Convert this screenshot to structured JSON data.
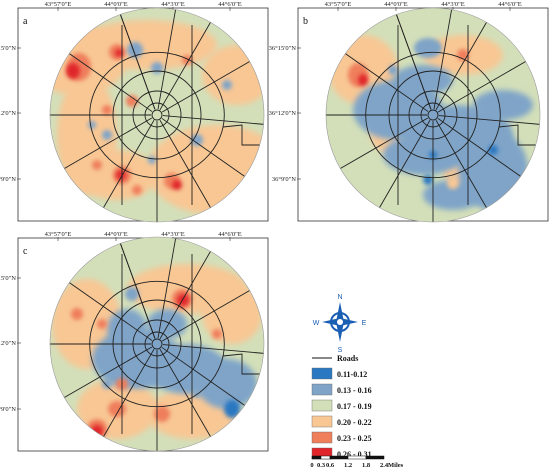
{
  "panels": [
    {
      "id": "a",
      "label": "a",
      "x_ticks": [
        "43°57'0\"E",
        "44°0'0\"E",
        "44°3'0\"E",
        "44°6'0\"E"
      ],
      "y_ticks": [
        "36°15'0\"N",
        "36°12'0\"N",
        "36°9'0\"N"
      ]
    },
    {
      "id": "b",
      "label": "b",
      "x_ticks": [
        "43°57'0\"E",
        "44°0'0\"E",
        "44°3'0\"E",
        "44°6'0\"E"
      ],
      "y_ticks": [
        "36°15'0\"N",
        "36°12'0\"N",
        "36°9'0\"N"
      ]
    },
    {
      "id": "c",
      "label": "c",
      "x_ticks": [
        "43°57'0\"E",
        "44°0'0\"E",
        "44°3'0\"E",
        "44°6'0\"E"
      ],
      "y_ticks": [
        "36°15'0\"N",
        "36°12'0\"N",
        "36°9'0\"N"
      ]
    }
  ],
  "north_arrow": {
    "n": "N",
    "s": "S",
    "e": "E",
    "w": "W"
  },
  "legend": {
    "roads_label": "Roads",
    "classes": [
      {
        "label": "0.11-0.12",
        "color": "#2b78c2"
      },
      {
        "label": "0.13 - 0.16",
        "color": "#7fa4c8"
      },
      {
        "label": "0.17 - 0.19",
        "color": "#d3dfb9"
      },
      {
        "label": "0.20 - 0.22",
        "color": "#f8c794"
      },
      {
        "label": "0.23 - 0.25",
        "color": "#ef7e5b"
      },
      {
        "label": "0.26 - 0.31",
        "color": "#e0252a"
      }
    ]
  },
  "scale_bar": {
    "ticks": [
      "0",
      "0.3",
      "0.6",
      "1.2",
      "1.8",
      "2.4"
    ],
    "unit": "Miles"
  }
}
